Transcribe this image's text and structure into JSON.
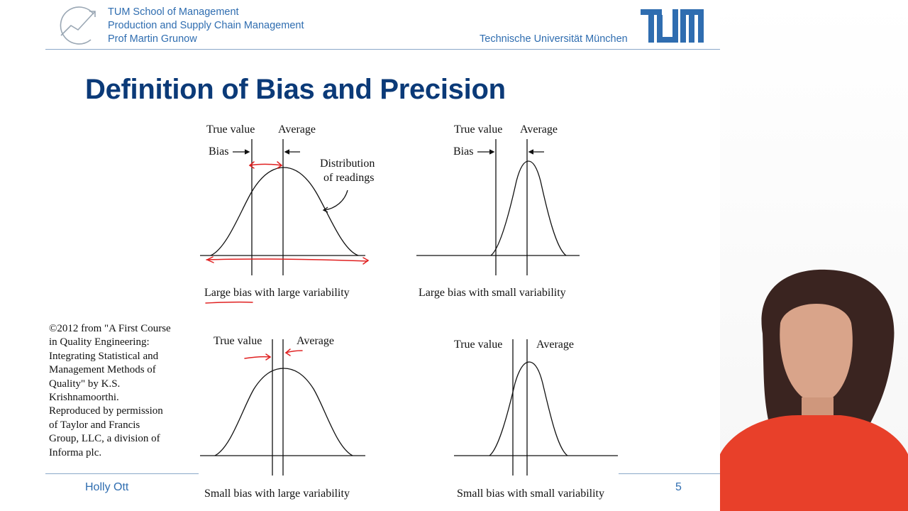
{
  "header": {
    "lines": [
      "TUM School of Management",
      "Production and Supply Chain Management",
      "Prof Martin Grunow"
    ],
    "university": "Technische Universität München",
    "logo_text": "TUM"
  },
  "slide": {
    "title": "Definition of Bias and Precision",
    "panels": [
      {
        "caption": "Large bias with large variability",
        "labels": {
          "true_value": "True value",
          "average": "Average",
          "bias": "Bias",
          "distribution": "Distribution",
          "distribution2": "of readings"
        }
      },
      {
        "caption": "Large bias with small variability",
        "labels": {
          "true_value": "True value",
          "average": "Average",
          "bias": "Bias"
        }
      },
      {
        "caption": "Small bias with large variability",
        "labels": {
          "true_value": "True value",
          "average": "Average"
        }
      },
      {
        "caption": "Small bias with small variability",
        "labels": {
          "true_value": "True value",
          "average": "Average"
        }
      }
    ],
    "credit": "©2012 from \"A First Course\nin Quality Engineering:\nIntegrating Statistical and\nManagement Methods of\nQuality\" by K.S.\nKrishnamoorthi.\nReproduced by permission\nof Taylor and Francis\nGroup, LLC, a division of\nInforma plc."
  },
  "footer": {
    "presenter": "Holly Ott",
    "page_number": "5"
  },
  "colors": {
    "brand_blue": "#2f6db0",
    "title_blue": "#0b3a78",
    "annotation_red": "#e02020",
    "presenter_shirt": "#e8402a"
  }
}
